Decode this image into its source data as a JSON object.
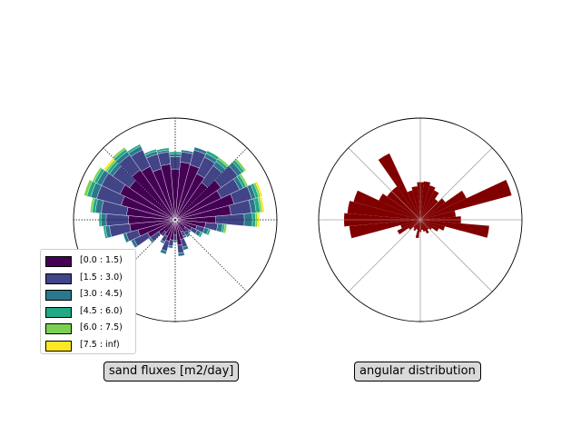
{
  "chart_data": [
    {
      "type": "windrose",
      "title": "sand fluxes [m2/day]",
      "bins": [
        "[0.0 : 1.5)",
        "[1.5 : 3.0)",
        "[3.0 : 4.5)",
        "[4.5 : 6.0)",
        "[6.0 : 7.5)",
        "[7.5 : inf)"
      ],
      "colors": [
        "#440154",
        "#414487",
        "#2a788e",
        "#22a884",
        "#7ad151",
        "#fde725"
      ],
      "rmax": 1.0,
      "grid": "dotted",
      "legend_placement": "lower-left",
      "sectors": [
        {
          "angle": 0,
          "values": [
            0.5,
            0.12,
            0.03,
            0.02,
            0.0,
            0.0
          ]
        },
        {
          "angle": 10,
          "values": [
            0.57,
            0.1,
            0.02,
            0.0,
            0.0,
            0.0
          ]
        },
        {
          "angle": 20,
          "values": [
            0.56,
            0.15,
            0.03,
            0.0,
            0.0,
            0.0
          ]
        },
        {
          "angle": 30,
          "values": [
            0.5,
            0.18,
            0.04,
            0.03,
            0.0,
            0.0
          ]
        },
        {
          "angle": 40,
          "values": [
            0.45,
            0.2,
            0.05,
            0.03,
            0.02,
            0.0
          ]
        },
        {
          "angle": 50,
          "values": [
            0.55,
            0.2,
            0.05,
            0.03,
            0.02,
            0.0
          ]
        },
        {
          "angle": 60,
          "values": [
            0.5,
            0.2,
            0.04,
            0.03,
            0.02,
            0.0
          ]
        },
        {
          "angle": 70,
          "values": [
            0.6,
            0.18,
            0.04,
            0.03,
            0.02,
            0.02
          ]
        },
        {
          "angle": 80,
          "values": [
            0.55,
            0.2,
            0.05,
            0.04,
            0.02,
            0.02
          ]
        },
        {
          "angle": 90,
          "values": [
            0.4,
            0.28,
            0.08,
            0.03,
            0.02,
            0.02
          ]
        },
        {
          "angle": 100,
          "values": [
            0.3,
            0.12,
            0.05,
            0.02,
            0.02,
            0.0
          ]
        },
        {
          "angle": 110,
          "values": [
            0.22,
            0.08,
            0.04,
            0.02,
            0.0,
            0.0
          ]
        },
        {
          "angle": 120,
          "values": [
            0.18,
            0.06,
            0.04,
            0.02,
            0.0,
            0.0
          ]
        },
        {
          "angle": 130,
          "values": [
            0.12,
            0.05,
            0.02,
            0.0,
            0.0,
            0.0
          ]
        },
        {
          "angle": 140,
          "values": [
            0.15,
            0.04,
            0.02,
            0.0,
            0.0,
            0.0
          ]
        },
        {
          "angle": 150,
          "values": [
            0.13,
            0.05,
            0.02,
            0.0,
            0.0,
            0.0
          ]
        },
        {
          "angle": 160,
          "values": [
            0.2,
            0.08,
            0.03,
            0.0,
            0.0,
            0.0
          ]
        },
        {
          "angle": 170,
          "values": [
            0.25,
            0.08,
            0.03,
            0.0,
            0.0,
            0.0
          ]
        },
        {
          "angle": 180,
          "values": [
            0.15,
            0.05,
            0.02,
            0.0,
            0.0,
            0.0
          ]
        },
        {
          "angle": 190,
          "values": [
            0.2,
            0.06,
            0.02,
            0.0,
            0.0,
            0.0
          ]
        },
        {
          "angle": 200,
          "values": [
            0.22,
            0.1,
            0.03,
            0.0,
            0.0,
            0.0
          ]
        },
        {
          "angle": 210,
          "values": [
            0.18,
            0.06,
            0.02,
            0.0,
            0.0,
            0.0
          ]
        },
        {
          "angle": 220,
          "values": [
            0.15,
            0.05,
            0.0,
            0.0,
            0.0,
            0.0
          ]
        },
        {
          "angle": 230,
          "values": [
            0.2,
            0.1,
            0.02,
            0.0,
            0.0,
            0.0
          ]
        },
        {
          "angle": 240,
          "values": [
            0.3,
            0.15,
            0.03,
            0.0,
            0.0,
            0.0
          ]
        },
        {
          "angle": 250,
          "values": [
            0.38,
            0.12,
            0.03,
            0.0,
            0.0,
            0.0
          ]
        },
        {
          "angle": 260,
          "values": [
            0.45,
            0.2,
            0.04,
            0.02,
            0.0,
            0.0
          ]
        },
        {
          "angle": 270,
          "values": [
            0.46,
            0.22,
            0.05,
            0.02,
            0.0,
            0.0
          ]
        },
        {
          "angle": 280,
          "values": [
            0.48,
            0.25,
            0.06,
            0.03,
            0.02,
            0.0
          ]
        },
        {
          "angle": 290,
          "values": [
            0.55,
            0.25,
            0.06,
            0.04,
            0.03,
            0.0
          ]
        },
        {
          "angle": 300,
          "values": [
            0.6,
            0.2,
            0.05,
            0.03,
            0.02,
            0.0
          ]
        },
        {
          "angle": 310,
          "values": [
            0.55,
            0.2,
            0.04,
            0.03,
            0.02,
            0.02
          ]
        },
        {
          "angle": 320,
          "values": [
            0.6,
            0.18,
            0.04,
            0.03,
            0.02,
            0.0
          ]
        },
        {
          "angle": 330,
          "values": [
            0.58,
            0.18,
            0.04,
            0.02,
            0.0,
            0.0
          ]
        },
        {
          "angle": 340,
          "values": [
            0.52,
            0.15,
            0.03,
            0.02,
            0.0,
            0.0
          ]
        },
        {
          "angle": 350,
          "values": [
            0.55,
            0.12,
            0.02,
            0.02,
            0.0,
            0.0
          ]
        }
      ]
    },
    {
      "type": "polar-bar",
      "title": "angular distribution",
      "color": "#800000",
      "rmax": 1.0,
      "grid": "solid",
      "sectors": [
        {
          "angle": 0,
          "value": 0.37
        },
        {
          "angle": 10,
          "value": 0.38
        },
        {
          "angle": 20,
          "value": 0.35
        },
        {
          "angle": 30,
          "value": 0.32
        },
        {
          "angle": 40,
          "value": 0.25
        },
        {
          "angle": 50,
          "value": 0.3
        },
        {
          "angle": 60,
          "value": 0.5
        },
        {
          "angle": 70,
          "value": 0.93
        },
        {
          "angle": 80,
          "value": 0.35
        },
        {
          "angle": 90,
          "value": 0.4
        },
        {
          "angle": 100,
          "value": 0.68
        },
        {
          "angle": 110,
          "value": 0.25
        },
        {
          "angle": 120,
          "value": 0.2
        },
        {
          "angle": 130,
          "value": 0.14
        },
        {
          "angle": 140,
          "value": 0.12
        },
        {
          "angle": 150,
          "value": 0.15
        },
        {
          "angle": 160,
          "value": 0.12
        },
        {
          "angle": 170,
          "value": 0.1
        },
        {
          "angle": 180,
          "value": 0.12
        },
        {
          "angle": 190,
          "value": 0.18
        },
        {
          "angle": 200,
          "value": 0.1
        },
        {
          "angle": 210,
          "value": 0.12
        },
        {
          "angle": 220,
          "value": 0.1
        },
        {
          "angle": 230,
          "value": 0.14
        },
        {
          "angle": 240,
          "value": 0.25
        },
        {
          "angle": 250,
          "value": 0.2
        },
        {
          "angle": 260,
          "value": 0.7
        },
        {
          "angle": 270,
          "value": 0.75
        },
        {
          "angle": 280,
          "value": 0.72
        },
        {
          "angle": 290,
          "value": 0.68
        },
        {
          "angle": 300,
          "value": 0.45
        },
        {
          "angle": 310,
          "value": 0.4
        },
        {
          "angle": 320,
          "value": 0.4
        },
        {
          "angle": 330,
          "value": 0.72
        },
        {
          "angle": 340,
          "value": 0.3
        },
        {
          "angle": 350,
          "value": 0.33
        }
      ]
    }
  ]
}
